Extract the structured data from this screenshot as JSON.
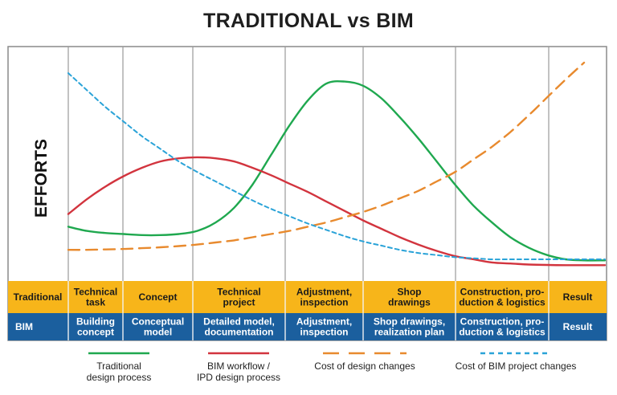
{
  "chart_data": {
    "type": "line",
    "title": "TRADITIONAL vs BIM",
    "ylabel": "EFFORTS",
    "xlabel": "",
    "x": [
      0,
      1,
      2,
      3,
      4,
      5,
      6,
      7,
      8,
      9,
      10,
      11,
      12,
      13,
      14,
      15,
      16,
      17,
      18,
      19,
      20,
      21,
      22,
      23,
      24,
      25,
      26,
      27,
      28
    ],
    "ylim": [
      0,
      100
    ],
    "grid": "vertical phase dividers",
    "legend": "bottom",
    "phases": [
      {
        "traditional": "Technical\ntask",
        "bim": "Building\nconcept"
      },
      {
        "traditional": "Concept",
        "bim": "Conceptual\nmodel"
      },
      {
        "traditional": "Technical\nproject",
        "bim": "Detailed model,\ndocumentation"
      },
      {
        "traditional": "Adjustment,\ninspection",
        "bim": "Adjustment,\ninspection"
      },
      {
        "traditional": "Shop\ndrawings",
        "bim": "Shop drawings,\nrealization plan"
      },
      {
        "traditional": "Construction, pro-\nduction & logistics",
        "bim": "Construction, pro-\nduction & logistics"
      },
      {
        "traditional": "Result",
        "bim": "Result"
      }
    ],
    "row_labels": {
      "traditional": "Traditional",
      "bim": "BIM"
    },
    "series": [
      {
        "name": "Traditional\ndesign process",
        "color": "#1fa84f",
        "dash": "solid",
        "values": [
          22,
          20,
          19,
          18.5,
          18,
          18,
          18.5,
          20,
          24,
          31,
          42,
          56,
          70,
          82,
          90,
          91,
          89,
          83,
          74,
          64,
          53,
          42,
          32,
          24,
          17,
          12,
          8.5,
          6.5,
          6
        ]
      },
      {
        "name": "BIM workflow /\nIPD design process",
        "color": "#d2343e",
        "dash": "solid",
        "values": [
          28,
          35,
          41,
          46,
          50,
          53,
          54.5,
          55,
          54.5,
          53,
          50,
          46.5,
          42.5,
          38.5,
          34,
          29.5,
          25,
          21,
          17,
          13.5,
          10.5,
          8,
          6.5,
          5,
          4.5,
          4,
          3.8,
          3.7,
          3.7
        ]
      },
      {
        "name": "Cost of design changes",
        "color": "#e88a2e",
        "dash": "dashed",
        "values": [
          11,
          11,
          11.2,
          11.4,
          11.8,
          12.2,
          12.8,
          13.5,
          14.5,
          15.5,
          17,
          18.5,
          20,
          22,
          24,
          26.5,
          29,
          32,
          35.5,
          39,
          43.5,
          48,
          54,
          60,
          67,
          75,
          83.5,
          92,
          100
        ]
      },
      {
        "name": "Cost of BIM project changes",
        "color": "#2aa3d8",
        "dash": "dashed",
        "values": [
          95,
          87,
          79,
          72,
          65,
          59,
          53,
          48,
          43.5,
          39,
          34.5,
          30.5,
          27,
          23.5,
          20.5,
          17.5,
          15,
          13,
          11,
          9.5,
          8.5,
          7.5,
          7,
          6.5,
          6.5,
          6.5,
          6.5,
          6.5,
          6.5
        ]
      }
    ]
  }
}
